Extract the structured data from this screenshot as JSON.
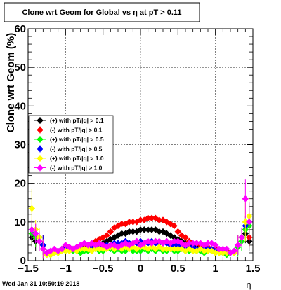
{
  "chart_data": {
    "type": "scatter",
    "title": "Clone wrt Geom for Global vs   η at pT > 0.11",
    "xlabel": "η",
    "ylabel": "Clone wrt Geom (%)",
    "xlim": [
      -1.5,
      1.5
    ],
    "ylim": [
      0,
      60
    ],
    "x_ticks": [
      "−1.5",
      "−1",
      "−0.5",
      "0",
      "0.5",
      "1",
      "1.5"
    ],
    "y_ticks": [
      "0",
      "10",
      "20",
      "30",
      "40",
      "50",
      "60"
    ],
    "grid": true,
    "legend_position": "left",
    "footer": "Wed Jan 31 10:50:19 2018",
    "series": [
      {
        "name": "(+) with pT/|q| > 0.1",
        "color": "#000000",
        "x": [
          -1.45,
          -1.4,
          -1.35,
          -1.3,
          -1.25,
          -1.2,
          -1.15,
          -1.1,
          -1.05,
          -1.0,
          -0.95,
          -0.9,
          -0.85,
          -0.8,
          -0.75,
          -0.7,
          -0.65,
          -0.6,
          -0.55,
          -0.5,
          -0.45,
          -0.4,
          -0.35,
          -0.3,
          -0.25,
          -0.2,
          -0.15,
          -0.1,
          -0.05,
          0.0,
          0.05,
          0.1,
          0.15,
          0.2,
          0.25,
          0.3,
          0.35,
          0.4,
          0.45,
          0.5,
          0.55,
          0.6,
          0.65,
          0.7,
          0.75,
          0.8,
          0.85,
          0.9,
          0.95,
          1.0,
          1.05,
          1.1,
          1.15,
          1.2,
          1.25,
          1.3,
          1.35,
          1.4,
          1.45
        ],
        "y": [
          6,
          5,
          6,
          4,
          2,
          2,
          2.5,
          2.5,
          3,
          3.5,
          3,
          3,
          3,
          3.5,
          3,
          3.5,
          4,
          3.5,
          4,
          4.5,
          5,
          5.5,
          6,
          6.5,
          7,
          7,
          7.5,
          7.5,
          7.5,
          8,
          8,
          8,
          8,
          8,
          7.5,
          7.5,
          7,
          6.5,
          6,
          5.5,
          5,
          4.5,
          4.5,
          4,
          3.5,
          3.5,
          3.5,
          3,
          3,
          3,
          2.5,
          2.5,
          2.5,
          2,
          2.5,
          4,
          6,
          7,
          5
        ]
      },
      {
        "name": "(-) with pT/|q| > 0.1",
        "color": "#ff0000",
        "x": [
          -1.45,
          -1.4,
          -1.35,
          -1.3,
          -1.25,
          -1.2,
          -1.15,
          -1.1,
          -1.05,
          -1.0,
          -0.95,
          -0.9,
          -0.85,
          -0.8,
          -0.75,
          -0.7,
          -0.65,
          -0.6,
          -0.55,
          -0.5,
          -0.45,
          -0.4,
          -0.35,
          -0.3,
          -0.25,
          -0.2,
          -0.15,
          -0.1,
          -0.05,
          0.0,
          0.05,
          0.1,
          0.15,
          0.2,
          0.25,
          0.3,
          0.35,
          0.4,
          0.45,
          0.5,
          0.55,
          0.6,
          0.65,
          0.7,
          0.75,
          0.8,
          0.85,
          0.9,
          0.95,
          1.0,
          1.05,
          1.1,
          1.15,
          1.2,
          1.25,
          1.3,
          1.35,
          1.4,
          1.45
        ],
        "y": [
          7,
          6,
          5,
          4,
          2,
          2,
          2.5,
          2.5,
          3,
          3,
          3,
          3,
          3.5,
          3.5,
          4,
          4,
          4.5,
          5,
          5.5,
          6,
          6.5,
          7.5,
          8.5,
          9,
          9.5,
          9.5,
          10,
          10,
          10,
          10.5,
          10.5,
          11,
          11,
          11,
          10.5,
          10.5,
          10,
          9.5,
          9,
          7.5,
          6.5,
          6,
          5,
          4.5,
          4.5,
          4,
          3.5,
          3.5,
          3,
          3,
          2.5,
          2.5,
          2.5,
          2,
          2.5,
          4,
          6,
          8,
          6
        ]
      },
      {
        "name": "(+) with pT/|q| > 0.5",
        "color": "#00ff00",
        "x": [
          -1.45,
          -1.4,
          -1.35,
          -1.3,
          -1.25,
          -1.2,
          -1.15,
          -1.1,
          -1.05,
          -1.0,
          -0.95,
          -0.9,
          -0.85,
          -0.8,
          -0.75,
          -0.7,
          -0.65,
          -0.6,
          -0.55,
          -0.5,
          -0.45,
          -0.4,
          -0.35,
          -0.3,
          -0.25,
          -0.2,
          -0.15,
          -0.1,
          -0.05,
          0.0,
          0.05,
          0.1,
          0.15,
          0.2,
          0.25,
          0.3,
          0.35,
          0.4,
          0.45,
          0.5,
          0.55,
          0.6,
          0.65,
          0.7,
          0.75,
          0.8,
          0.85,
          0.9,
          0.95,
          1.0,
          1.05,
          1.1,
          1.15,
          1.2,
          1.25,
          1.3,
          1.35,
          1.4,
          1.45
        ],
        "y": [
          7,
          6,
          6,
          3,
          1.5,
          1.5,
          2,
          2,
          2.5,
          2.5,
          2.5,
          2.5,
          2.5,
          2,
          2.5,
          2.5,
          2.5,
          3,
          2.5,
          2.5,
          3,
          3,
          2.5,
          3,
          2.5,
          2.5,
          3,
          2.5,
          2.5,
          2.5,
          3,
          2.5,
          3,
          2.5,
          3,
          2.5,
          2.5,
          3,
          2.5,
          2.5,
          3,
          2.5,
          2.5,
          2.5,
          2.5,
          2.5,
          2,
          2.5,
          2.5,
          2,
          2,
          2,
          1.5,
          2,
          2,
          3.5,
          5,
          8,
          9
        ]
      },
      {
        "name": "(-) with pT/|q| > 0.5",
        "color": "#0000ff",
        "x": [
          -1.45,
          -1.4,
          -1.35,
          -1.3,
          -1.25,
          -1.2,
          -1.15,
          -1.1,
          -1.05,
          -1.0,
          -0.95,
          -0.9,
          -0.85,
          -0.8,
          -0.75,
          -0.7,
          -0.65,
          -0.6,
          -0.55,
          -0.5,
          -0.45,
          -0.4,
          -0.35,
          -0.3,
          -0.25,
          -0.2,
          -0.15,
          -0.1,
          -0.05,
          0.0,
          0.05,
          0.1,
          0.15,
          0.2,
          0.25,
          0.3,
          0.35,
          0.4,
          0.45,
          0.5,
          0.55,
          0.6,
          0.65,
          0.7,
          0.75,
          0.8,
          0.85,
          0.9,
          0.95,
          1.0,
          1.05,
          1.1,
          1.15,
          1.2,
          1.25,
          1.3,
          1.35,
          1.4,
          1.45
        ],
        "y": [
          8,
          7,
          6,
          4,
          2,
          2,
          2.5,
          2.5,
          3,
          3,
          3.5,
          3,
          3,
          3.5,
          3,
          3.5,
          3.5,
          4,
          3.5,
          3.5,
          4,
          4,
          4.5,
          4.5,
          4.5,
          5,
          4.5,
          4.5,
          4.5,
          5,
          4.5,
          4.5,
          5,
          4.5,
          4.5,
          4.5,
          4.5,
          4,
          4,
          4,
          3.5,
          3.5,
          3.5,
          3.5,
          3,
          3,
          3,
          3,
          3,
          2.5,
          2.5,
          2.5,
          2,
          2,
          2.5,
          4,
          6,
          9,
          10
        ]
      },
      {
        "name": "(+) with pT/|q| > 1.0",
        "color": "#ffff00",
        "x": [
          -1.45,
          -1.4,
          -1.35,
          -1.3,
          -1.25,
          -1.2,
          -1.15,
          -1.1,
          -1.05,
          -1.0,
          -0.95,
          -0.9,
          -0.85,
          -0.8,
          -0.75,
          -0.7,
          -0.65,
          -0.6,
          -0.55,
          -0.5,
          -0.45,
          -0.4,
          -0.35,
          -0.3,
          -0.25,
          -0.2,
          -0.15,
          -0.1,
          -0.05,
          0.0,
          0.05,
          0.1,
          0.15,
          0.2,
          0.25,
          0.3,
          0.35,
          0.4,
          0.45,
          0.5,
          0.55,
          0.6,
          0.65,
          0.7,
          0.75,
          0.8,
          0.85,
          0.9,
          0.95,
          1.0,
          1.05,
          1.1,
          1.15,
          1.2,
          1.25,
          1.3,
          1.35,
          1.4,
          1.45
        ],
        "y": [
          13.5,
          8,
          6,
          3,
          1.5,
          1.5,
          2,
          2,
          2.5,
          2.5,
          2.5,
          3,
          2.5,
          3,
          3,
          3,
          2.5,
          3,
          3,
          3,
          3,
          3.5,
          3,
          3.5,
          3,
          3.5,
          3,
          3.5,
          3,
          3.5,
          3.5,
          3,
          3.5,
          3,
          3.5,
          3,
          3,
          3,
          3,
          3,
          3,
          2.5,
          3,
          2.5,
          2.5,
          3,
          2.5,
          2.5,
          2.5,
          2,
          2,
          2,
          2,
          2,
          2,
          4,
          6,
          10,
          11.5
        ]
      },
      {
        "name": "(-) with pT/|q| > 1.0",
        "color": "#ff00ff",
        "x": [
          -1.45,
          -1.4,
          -1.35,
          -1.3,
          -1.25,
          -1.2,
          -1.15,
          -1.1,
          -1.05,
          -1.0,
          -0.95,
          -0.9,
          -0.85,
          -0.8,
          -0.75,
          -0.7,
          -0.65,
          -0.6,
          -0.55,
          -0.5,
          -0.45,
          -0.4,
          -0.35,
          -0.3,
          -0.25,
          -0.2,
          -0.15,
          -0.1,
          -0.05,
          0.0,
          0.05,
          0.1,
          0.15,
          0.2,
          0.25,
          0.3,
          0.35,
          0.4,
          0.45,
          0.5,
          0.55,
          0.6,
          0.65,
          0.7,
          0.75,
          0.8,
          0.85,
          0.9,
          0.95,
          1.0,
          1.05,
          1.1,
          1.15,
          1.2,
          1.25,
          1.3,
          1.35,
          1.4,
          1.45
        ],
        "y": [
          8,
          7,
          5,
          3,
          2,
          2.5,
          3,
          2.5,
          3,
          4,
          3.5,
          3,
          3.5,
          4,
          4.5,
          4,
          4.5,
          4,
          4.5,
          4,
          3.5,
          4,
          4,
          3.5,
          4,
          4.5,
          4,
          4.5,
          5,
          4,
          4.5,
          5,
          4.5,
          5,
          5,
          4.5,
          5,
          4.5,
          5,
          5,
          4.5,
          4,
          4.5,
          4.5,
          4.5,
          4.5,
          4,
          4.5,
          4.5,
          4,
          3,
          3,
          3,
          2,
          2.5,
          4,
          6,
          16,
          10
        ]
      }
    ]
  }
}
